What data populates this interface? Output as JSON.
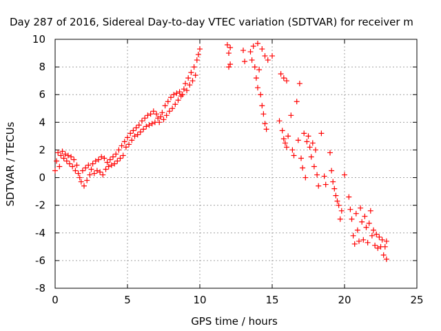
{
  "chart_data": {
    "type": "scatter",
    "title": "Day 287 of 2016, Sidereal Day-to-day VTEC variation (SDTVAR) for receiver m",
    "xlabel": "GPS time / hours",
    "ylabel": "SDTVAR / TECUs",
    "xlim": [
      0,
      25
    ],
    "ylim": [
      -8,
      10
    ],
    "xticks": [
      0,
      5,
      10,
      15,
      20,
      25
    ],
    "yticks": [
      -8,
      -6,
      -4,
      -2,
      0,
      2,
      4,
      6,
      8,
      10
    ],
    "grid": true,
    "marker": "+",
    "color": "#ff0000",
    "series": [
      {
        "points": [
          [
            0.0,
            0.5
          ],
          [
            0.1,
            1.2
          ],
          [
            0.2,
            1.8
          ],
          [
            0.3,
            0.8
          ],
          [
            0.4,
            1.6
          ],
          [
            0.5,
            1.9
          ],
          [
            0.6,
            1.4
          ],
          [
            0.7,
            1.7
          ],
          [
            0.8,
            1.2
          ],
          [
            0.9,
            1.6
          ],
          [
            1.0,
            1.0
          ],
          [
            1.1,
            1.5
          ],
          [
            1.2,
            0.8
          ],
          [
            1.3,
            1.3
          ],
          [
            1.4,
            0.5
          ],
          [
            1.5,
            0.9
          ],
          [
            1.6,
            0.3
          ],
          [
            1.7,
            0.0
          ],
          [
            1.8,
            -0.3
          ],
          [
            1.9,
            0.5
          ],
          [
            2.0,
            -0.6
          ],
          [
            2.1,
            0.7
          ],
          [
            2.2,
            -0.2
          ],
          [
            2.3,
            0.9
          ],
          [
            2.4,
            0.2
          ],
          [
            2.5,
            0.6
          ],
          [
            2.6,
            1.0
          ],
          [
            2.7,
            0.3
          ],
          [
            2.8,
            1.2
          ],
          [
            2.9,
            0.5
          ],
          [
            3.0,
            1.3
          ],
          [
            3.1,
            0.4
          ],
          [
            3.2,
            1.5
          ],
          [
            3.3,
            0.2
          ],
          [
            3.4,
            1.4
          ],
          [
            3.5,
            0.6
          ],
          [
            3.6,
            1.1
          ],
          [
            3.7,
            0.8
          ],
          [
            3.8,
            1.3
          ],
          [
            3.9,
            0.9
          ],
          [
            4.0,
            1.5
          ],
          [
            4.1,
            1.0
          ],
          [
            4.2,
            1.7
          ],
          [
            4.3,
            1.2
          ],
          [
            4.4,
            2.0
          ],
          [
            4.5,
            1.4
          ],
          [
            4.6,
            2.3
          ],
          [
            4.7,
            1.6
          ],
          [
            4.8,
            2.6
          ],
          [
            4.9,
            2.2
          ],
          [
            5.0,
            2.9
          ],
          [
            5.1,
            2.4
          ],
          [
            5.2,
            3.2
          ],
          [
            5.3,
            2.7
          ],
          [
            5.4,
            3.4
          ],
          [
            5.5,
            3.0
          ],
          [
            5.6,
            3.6
          ],
          [
            5.7,
            3.1
          ],
          [
            5.8,
            3.8
          ],
          [
            5.9,
            3.3
          ],
          [
            6.0,
            4.1
          ],
          [
            6.1,
            3.5
          ],
          [
            6.2,
            4.3
          ],
          [
            6.3,
            3.7
          ],
          [
            6.4,
            4.5
          ],
          [
            6.5,
            3.8
          ],
          [
            6.6,
            4.6
          ],
          [
            6.7,
            3.9
          ],
          [
            6.8,
            4.8
          ],
          [
            6.9,
            4.0
          ],
          [
            7.0,
            4.6
          ],
          [
            7.1,
            4.3
          ],
          [
            7.2,
            4.0
          ],
          [
            7.3,
            4.4
          ],
          [
            7.4,
            4.7
          ],
          [
            7.5,
            4.2
          ],
          [
            7.6,
            5.2
          ],
          [
            7.7,
            4.5
          ],
          [
            7.8,
            5.5
          ],
          [
            7.9,
            4.8
          ],
          [
            8.0,
            5.8
          ],
          [
            8.1,
            5.0
          ],
          [
            8.2,
            6.0
          ],
          [
            8.3,
            5.3
          ],
          [
            8.4,
            6.1
          ],
          [
            8.5,
            5.6
          ],
          [
            8.6,
            6.2
          ],
          [
            8.7,
            5.9
          ],
          [
            8.8,
            6.0
          ],
          [
            8.9,
            6.4
          ],
          [
            9.0,
            6.8
          ],
          [
            9.1,
            6.3
          ],
          [
            9.2,
            7.2
          ],
          [
            9.3,
            6.7
          ],
          [
            9.4,
            7.6
          ],
          [
            9.5,
            7.0
          ],
          [
            9.6,
            8.0
          ],
          [
            9.7,
            7.4
          ],
          [
            9.8,
            8.5
          ],
          [
            9.9,
            8.9
          ],
          [
            10.0,
            9.3
          ],
          [
            11.9,
            9.6
          ],
          [
            12.0,
            8.0
          ],
          [
            12.0,
            9.0
          ],
          [
            12.1,
            9.4
          ],
          [
            12.1,
            8.2
          ],
          [
            13.0,
            9.2
          ],
          [
            13.1,
            8.4
          ],
          [
            13.5,
            9.1
          ],
          [
            13.6,
            8.5
          ],
          [
            13.7,
            9.5
          ],
          [
            13.8,
            8.0
          ],
          [
            13.9,
            7.2
          ],
          [
            14.0,
            9.7
          ],
          [
            14.0,
            6.5
          ],
          [
            14.1,
            7.8
          ],
          [
            14.2,
            6.0
          ],
          [
            14.3,
            9.3
          ],
          [
            14.3,
            5.2
          ],
          [
            14.4,
            4.6
          ],
          [
            14.5,
            8.8
          ],
          [
            14.5,
            3.9
          ],
          [
            14.6,
            3.5
          ],
          [
            14.7,
            8.5
          ],
          [
            15.0,
            8.8
          ],
          [
            15.5,
            4.1
          ],
          [
            15.6,
            7.5
          ],
          [
            15.7,
            3.4
          ],
          [
            15.8,
            7.2
          ],
          [
            15.8,
            2.8
          ],
          [
            15.9,
            2.5
          ],
          [
            16.0,
            7.0
          ],
          [
            16.0,
            2.2
          ],
          [
            16.1,
            3.0
          ],
          [
            16.3,
            4.5
          ],
          [
            16.4,
            2.0
          ],
          [
            16.5,
            1.6
          ],
          [
            16.7,
            5.5
          ],
          [
            16.8,
            2.7
          ],
          [
            16.9,
            6.8
          ],
          [
            17.0,
            1.4
          ],
          [
            17.1,
            0.7
          ],
          [
            17.2,
            3.2
          ],
          [
            17.3,
            0.0
          ],
          [
            17.4,
            2.6
          ],
          [
            17.5,
            3.0
          ],
          [
            17.6,
            2.2
          ],
          [
            17.7,
            1.5
          ],
          [
            17.8,
            2.5
          ],
          [
            17.9,
            0.8
          ],
          [
            18.0,
            2.0
          ],
          [
            18.1,
            0.2
          ],
          [
            18.2,
            -0.6
          ],
          [
            18.4,
            3.2
          ],
          [
            18.6,
            0.1
          ],
          [
            18.7,
            -0.5
          ],
          [
            19.0,
            1.8
          ],
          [
            19.1,
            0.5
          ],
          [
            19.2,
            -0.3
          ],
          [
            19.3,
            -0.8
          ],
          [
            19.4,
            -1.3
          ],
          [
            19.5,
            -1.7
          ],
          [
            19.6,
            -2.0
          ],
          [
            19.7,
            -3.0
          ],
          [
            19.8,
            -2.4
          ],
          [
            20.0,
            0.2
          ],
          [
            20.3,
            -1.4
          ],
          [
            20.4,
            -2.3
          ],
          [
            20.5,
            -3.0
          ],
          [
            20.6,
            -4.2
          ],
          [
            20.7,
            -4.8
          ],
          [
            20.8,
            -2.6
          ],
          [
            20.9,
            -3.8
          ],
          [
            21.0,
            -4.6
          ],
          [
            21.1,
            -2.2
          ],
          [
            21.2,
            -3.2
          ],
          [
            21.3,
            -4.5
          ],
          [
            21.4,
            -2.8
          ],
          [
            21.5,
            -3.6
          ],
          [
            21.6,
            -4.7
          ],
          [
            21.7,
            -3.3
          ],
          [
            21.8,
            -2.4
          ],
          [
            21.9,
            -4.2
          ],
          [
            22.0,
            -3.8
          ],
          [
            22.1,
            -4.9
          ],
          [
            22.2,
            -4.1
          ],
          [
            22.3,
            -5.1
          ],
          [
            22.4,
            -4.3
          ],
          [
            22.5,
            -5.0
          ],
          [
            22.6,
            -4.5
          ],
          [
            22.7,
            -5.6
          ],
          [
            22.8,
            -5.0
          ],
          [
            22.9,
            -5.9
          ],
          [
            22.9,
            -4.6
          ]
        ]
      }
    ]
  }
}
